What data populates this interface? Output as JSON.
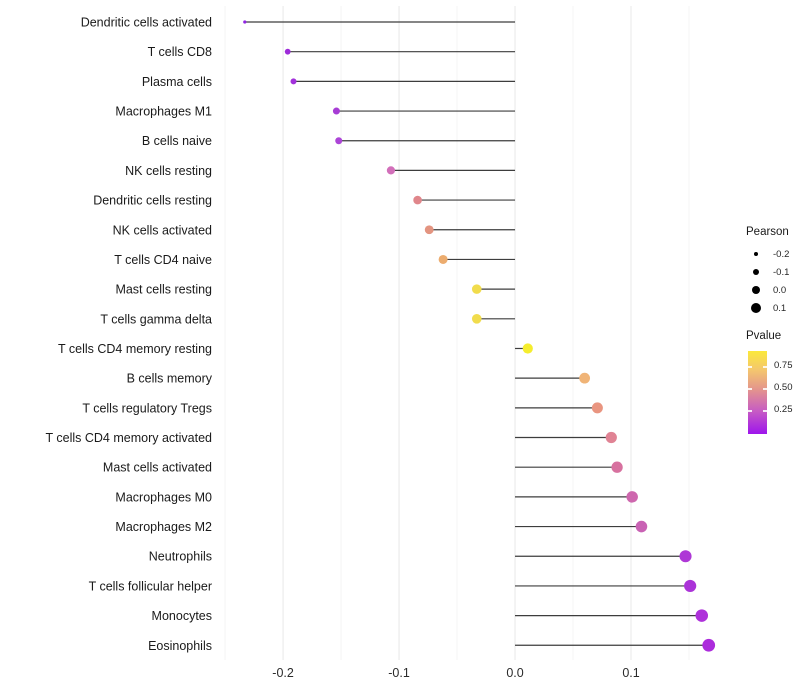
{
  "chart_data": {
    "type": "lollipop",
    "title": "",
    "xlabel": "",
    "ylabel": "",
    "grid": true,
    "xlim": [
      -0.2561,
      0.175
    ],
    "x_ticks": [
      "-0.2",
      "-0.1",
      "0.0",
      "0.1"
    ],
    "x_tick_values": [
      -0.2,
      -0.1,
      0.0,
      0.1
    ],
    "x_minor_values": [
      -0.25,
      -0.15,
      -0.05,
      0.05,
      0.15
    ],
    "baseline_value": 0.0,
    "rows": [
      {
        "label": "Dendritic cells activated",
        "pearson": -0.233,
        "color": "#9025E2",
        "diameter": 3.2
      },
      {
        "label": "T cells CD8",
        "pearson": -0.196,
        "color": "#9D2BD9",
        "diameter": 5.8
      },
      {
        "label": "Plasma cells",
        "pearson": -0.191,
        "color": "#A231DB",
        "diameter": 6.0
      },
      {
        "label": "Macrophages M1",
        "pearson": -0.154,
        "color": "#A73CD5",
        "diameter": 7.0
      },
      {
        "label": "B cells naive",
        "pearson": -0.152,
        "color": "#AC45D7",
        "diameter": 7.0
      },
      {
        "label": "NK cells resting",
        "pearson": -0.107,
        "color": "#D26FBA",
        "diameter": 8.2
      },
      {
        "label": "Dendritic cells resting",
        "pearson": -0.084,
        "color": "#E0868B",
        "diameter": 8.6
      },
      {
        "label": "NK cells activated",
        "pearson": -0.074,
        "color": "#E39480",
        "diameter": 8.8
      },
      {
        "label": "T cells CD4 naive",
        "pearson": -0.062,
        "color": "#ECAC6E",
        "diameter": 9.0
      },
      {
        "label": "Mast cells resting",
        "pearson": -0.033,
        "color": "#F1DC4C",
        "diameter": 9.6
      },
      {
        "label": "T cells gamma delta",
        "pearson": -0.033,
        "color": "#F1DC4C",
        "diameter": 9.6
      },
      {
        "label": "T cells CD4 memory resting",
        "pearson": 0.011,
        "color": "#F5ED2E",
        "diameter": 10.2
      },
      {
        "label": "B cells memory",
        "pearson": 0.06,
        "color": "#F0B477",
        "diameter": 10.8
      },
      {
        "label": "T cells regulatory  Tregs",
        "pearson": 0.071,
        "color": "#E99580",
        "diameter": 11.0
      },
      {
        "label": "T cells CD4 memory activated",
        "pearson": 0.083,
        "color": "#E08394",
        "diameter": 11.2
      },
      {
        "label": "Mast cells activated",
        "pearson": 0.088,
        "color": "#D7719F",
        "diameter": 11.3
      },
      {
        "label": "Macrophages M0",
        "pearson": 0.101,
        "color": "#CE67AE",
        "diameter": 11.5
      },
      {
        "label": "Macrophages M2",
        "pearson": 0.109,
        "color": "#C962B4",
        "diameter": 11.6
      },
      {
        "label": "Neutrophils",
        "pearson": 0.147,
        "color": "#AE37D6",
        "diameter": 12.1
      },
      {
        "label": "T cells follicular helper",
        "pearson": 0.151,
        "color": "#AB33D8",
        "diameter": 12.2
      },
      {
        "label": "Monocytes",
        "pearson": 0.161,
        "color": "#AE31DA",
        "diameter": 12.5
      },
      {
        "label": "Eosinophils",
        "pearson": 0.167,
        "color": "#AC2CDC",
        "diameter": 12.7
      }
    ],
    "legend_size": {
      "title": "Pearson",
      "items": [
        {
          "label": "-0.2",
          "diameter": 4.7
        },
        {
          "label": "-0.1",
          "diameter": 6.7
        },
        {
          "label": "0.0",
          "diameter": 8.7
        },
        {
          "label": "0.1",
          "diameter": 10.0
        }
      ]
    },
    "legend_color": {
      "title": "Pvalue",
      "ticks": [
        "0.75",
        "0.50",
        "0.25"
      ],
      "gradient_stops": [
        {
          "color": "#9E15EC",
          "pos": 0
        },
        {
          "color": "#C75CC3",
          "pos": 28
        },
        {
          "color": "#E3938E",
          "pos": 53
        },
        {
          "color": "#F4C66E",
          "pos": 77
        },
        {
          "color": "#FBE93B",
          "pos": 100
        }
      ]
    },
    "colors": {
      "stem": "#3D3D3D",
      "grid_major": "#E8E8E8",
      "grid_minor": "#F4F4F4",
      "axis_text": "#2B2B2B",
      "label_text": "#1A1A1A",
      "legend_dot": "#000000"
    }
  }
}
